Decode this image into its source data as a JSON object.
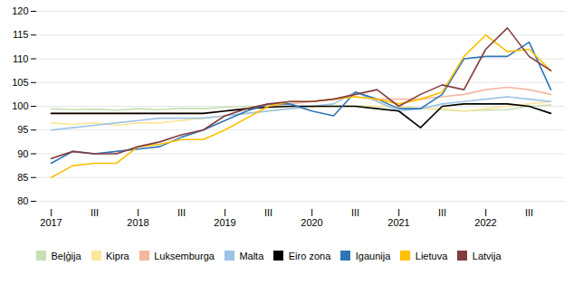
{
  "chart_data": {
    "type": "line",
    "categories": [
      "I\n2017",
      null,
      "III",
      null,
      "I\n2018",
      null,
      "III",
      null,
      "I\n2019",
      null,
      "III",
      null,
      "I\n2020",
      null,
      "III",
      null,
      "I\n2021",
      null,
      "III",
      null,
      "I\n2022",
      null,
      "III",
      null
    ],
    "series": [
      {
        "name": "Beļģija",
        "color": "#c6e0b4",
        "values": [
          99.5,
          99.3,
          99.4,
          99.2,
          99.5,
          99.3,
          99.6,
          99.5,
          99.8,
          100.0,
          100.0,
          100.0,
          100.0,
          100.0,
          100.1,
          100.0,
          99.9,
          99.5,
          99.3,
          99.0,
          99.2,
          99.3,
          100.0,
          100.3
        ]
      },
      {
        "name": "Kipra",
        "color": "#ffe699",
        "values": [
          96.5,
          96.2,
          96.5,
          96.0,
          96.5,
          96.5,
          97.0,
          97.5,
          98.0,
          98.5,
          99.0,
          99.5,
          99.8,
          100.0,
          100.0,
          100.0,
          100.0,
          99.5,
          99.5,
          99.0,
          99.5,
          100.0,
          100.5,
          101.0
        ]
      },
      {
        "name": "Luksemburga",
        "color": "#f4b8a0",
        "values": [
          98.5,
          98.5,
          98.5,
          98.5,
          98.5,
          98.5,
          98.5,
          98.5,
          99.0,
          99.5,
          100.0,
          100.5,
          101.0,
          101.5,
          102.0,
          101.5,
          101.5,
          101.5,
          102.0,
          102.5,
          103.5,
          104.0,
          103.5,
          102.5
        ]
      },
      {
        "name": "Malta",
        "color": "#9dc3e6",
        "values": [
          95.0,
          95.5,
          96.0,
          96.5,
          97.0,
          97.5,
          97.5,
          97.5,
          98.0,
          98.5,
          99.0,
          99.5,
          100.0,
          100.5,
          103.0,
          101.0,
          99.0,
          99.5,
          100.5,
          101.0,
          101.5,
          102.0,
          101.5,
          101.0
        ]
      },
      {
        "name": "Eiro zona",
        "color": "#000000",
        "values": [
          98.5,
          98.5,
          98.5,
          98.5,
          98.5,
          98.5,
          98.5,
          98.5,
          99.0,
          99.5,
          99.8,
          100.0,
          100.0,
          100.0,
          100.0,
          99.5,
          99.0,
          95.5,
          100.0,
          100.5,
          100.5,
          100.5,
          100.0,
          98.5
        ]
      },
      {
        "name": "Igaunija",
        "color": "#2e75b6",
        "values": [
          88.0,
          90.5,
          90.0,
          90.5,
          91.0,
          91.5,
          93.5,
          95.0,
          97.0,
          99.0,
          100.5,
          100.5,
          99.0,
          98.0,
          103.0,
          101.5,
          99.5,
          99.5,
          102.5,
          110.0,
          110.5,
          110.5,
          113.5,
          103.5
        ]
      },
      {
        "name": "Lietuva",
        "color": "#ffc000",
        "values": [
          85.0,
          87.5,
          88.0,
          88.0,
          91.5,
          92.0,
          93.0,
          93.0,
          95.0,
          97.5,
          100.0,
          101.0,
          101.0,
          101.5,
          102.0,
          101.5,
          100.5,
          101.5,
          103.0,
          110.5,
          115.0,
          111.5,
          112.0,
          107.5
        ]
      },
      {
        "name": "Latvija",
        "color": "#833c40",
        "values": [
          89.0,
          90.5,
          90.0,
          90.0,
          91.5,
          92.5,
          94.0,
          95.0,
          98.0,
          99.5,
          100.5,
          101.0,
          101.0,
          101.5,
          102.5,
          103.5,
          100.0,
          102.5,
          104.5,
          103.5,
          112.0,
          116.5,
          110.5,
          107.5
        ]
      }
    ],
    "ylim": [
      80,
      120
    ],
    "yticks": [
      80,
      85,
      90,
      95,
      100,
      105,
      110,
      115,
      120
    ],
    "grid": true,
    "legend": "bottom"
  }
}
